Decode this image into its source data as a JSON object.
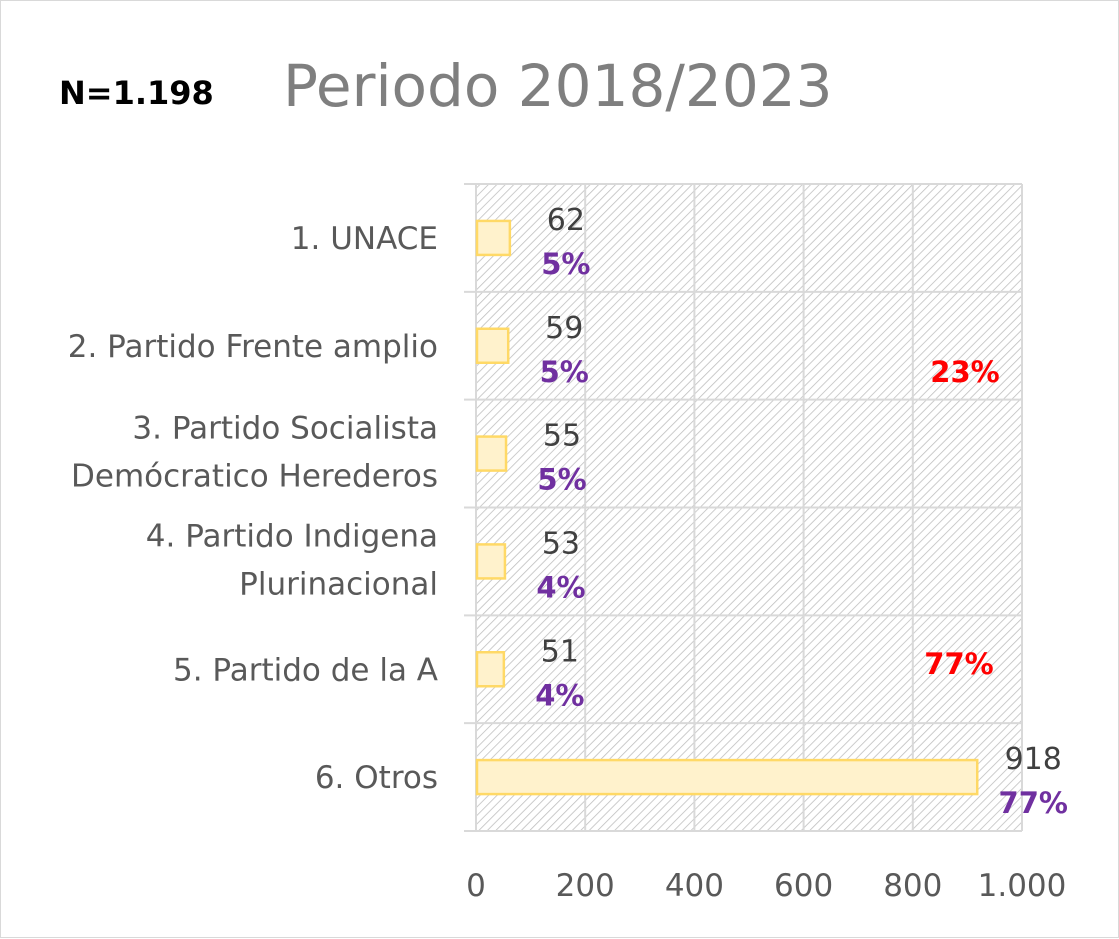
{
  "chart_data": {
    "type": "bar",
    "orientation": "horizontal",
    "title": "Periodo 2018/2023",
    "sample_note": "N=1.198",
    "categories": [
      [
        "1. UNACE"
      ],
      [
        "2. Partido Frente amplio"
      ],
      [
        "3. Partido Socialista",
        "Demócratico Herederos"
      ],
      [
        "4. Partido Indigena",
        "Plurinacional"
      ],
      [
        "5. Partido de la A"
      ],
      [
        "6. Otros"
      ]
    ],
    "values": [
      62,
      59,
      55,
      53,
      51,
      918
    ],
    "percent_labels": [
      "5%",
      "5%",
      "5%",
      "4%",
      "4%",
      "77%"
    ],
    "group_labels": [
      "23%",
      "77%"
    ],
    "xlim": [
      0,
      1000
    ],
    "x_ticks": [
      0,
      200,
      400,
      600,
      800,
      1000
    ],
    "x_tick_labels": [
      "0",
      "200",
      "400",
      "600",
      "800",
      "1.000"
    ],
    "grid": true,
    "legend": "none",
    "colors": {
      "bar_fill": "#fff2cc",
      "bar_stroke": "#ffd966",
      "percent_text": "#7030a0",
      "group_text": "#ff0000",
      "title_text": "#7f7f7f",
      "grid": "#d9d9d9",
      "hatch": "#bfbfbf"
    }
  }
}
